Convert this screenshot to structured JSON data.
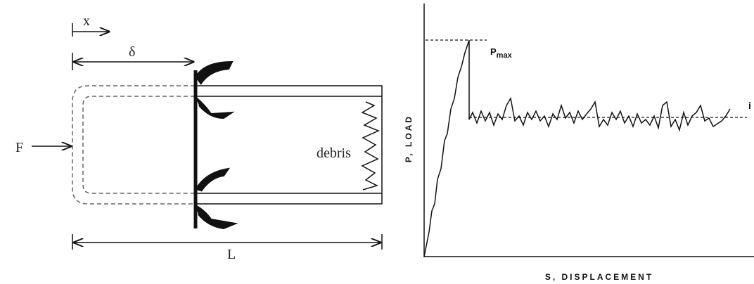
{
  "left_diagram": {
    "x_label": "x",
    "delta_label": "δ",
    "force_label": "F",
    "debris_label": "debris",
    "length_label": "L"
  },
  "right_diagram": {
    "peak_label": {
      "base": "P",
      "subscript": "max"
    },
    "mean_label": "i",
    "y_axis_label": "P, LOAD",
    "x_axis_label": "S, DISPLACEMENT"
  }
}
